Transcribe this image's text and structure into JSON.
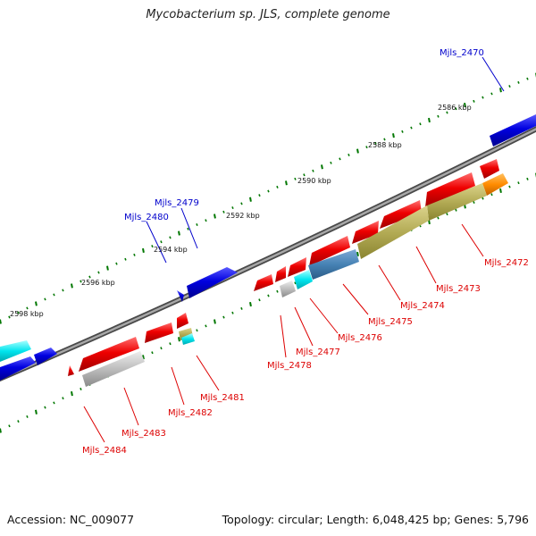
{
  "title": "Mycobacterium sp. JLS, complete genome",
  "footer": {
    "accession": "Accession: NC_009077",
    "summary": "Topology: circular; Length: 6,048,425 bp; Genes: 5,796"
  },
  "colors": {
    "forward_label": "#0000cc",
    "reverse_label": "#dd0000",
    "ruler_ticks": "#007700",
    "backbone": "#808080"
  },
  "scale_labels": [
    "2586 kbp",
    "2588 kbp",
    "2590 kbp",
    "2592 kbp",
    "2594 kbp",
    "2596 kbp",
    "2598 kbp"
  ],
  "genes": [
    {
      "name": "Mjls_2470",
      "strand": "+",
      "color": "#0000e0"
    },
    {
      "name": "Mjls_2479",
      "strand": "+",
      "color": "#0000e0"
    },
    {
      "name": "Mjls_2480",
      "strand": "+",
      "color": "#0000e0"
    },
    {
      "name": "Mjls_2472",
      "strand": "-",
      "color": "#ff8c00"
    },
    {
      "name": "Mjls_2473",
      "strand": "-",
      "color": "#b0a850"
    },
    {
      "name": "Mjls_2474",
      "strand": "-",
      "color": "#b0a850"
    },
    {
      "name": "Mjls_2475",
      "strand": "-",
      "color": "#4682b4"
    },
    {
      "name": "Mjls_2476",
      "strand": "-",
      "color": "#00e5ee"
    },
    {
      "name": "Mjls_2477",
      "strand": "-",
      "color": "#b8b8b8"
    },
    {
      "name": "Mjls_2478",
      "strand": "-",
      "color": "#ee0000"
    },
    {
      "name": "Mjls_2481",
      "strand": "-",
      "color": "#00e5ee"
    },
    {
      "name": "Mjls_2482",
      "strand": "-",
      "color": "#b0a850"
    },
    {
      "name": "Mjls_2483",
      "strand": "-",
      "color": "#b8b8b8"
    },
    {
      "name": "Mjls_2484",
      "strand": "-",
      "color": "#ee0000"
    }
  ]
}
